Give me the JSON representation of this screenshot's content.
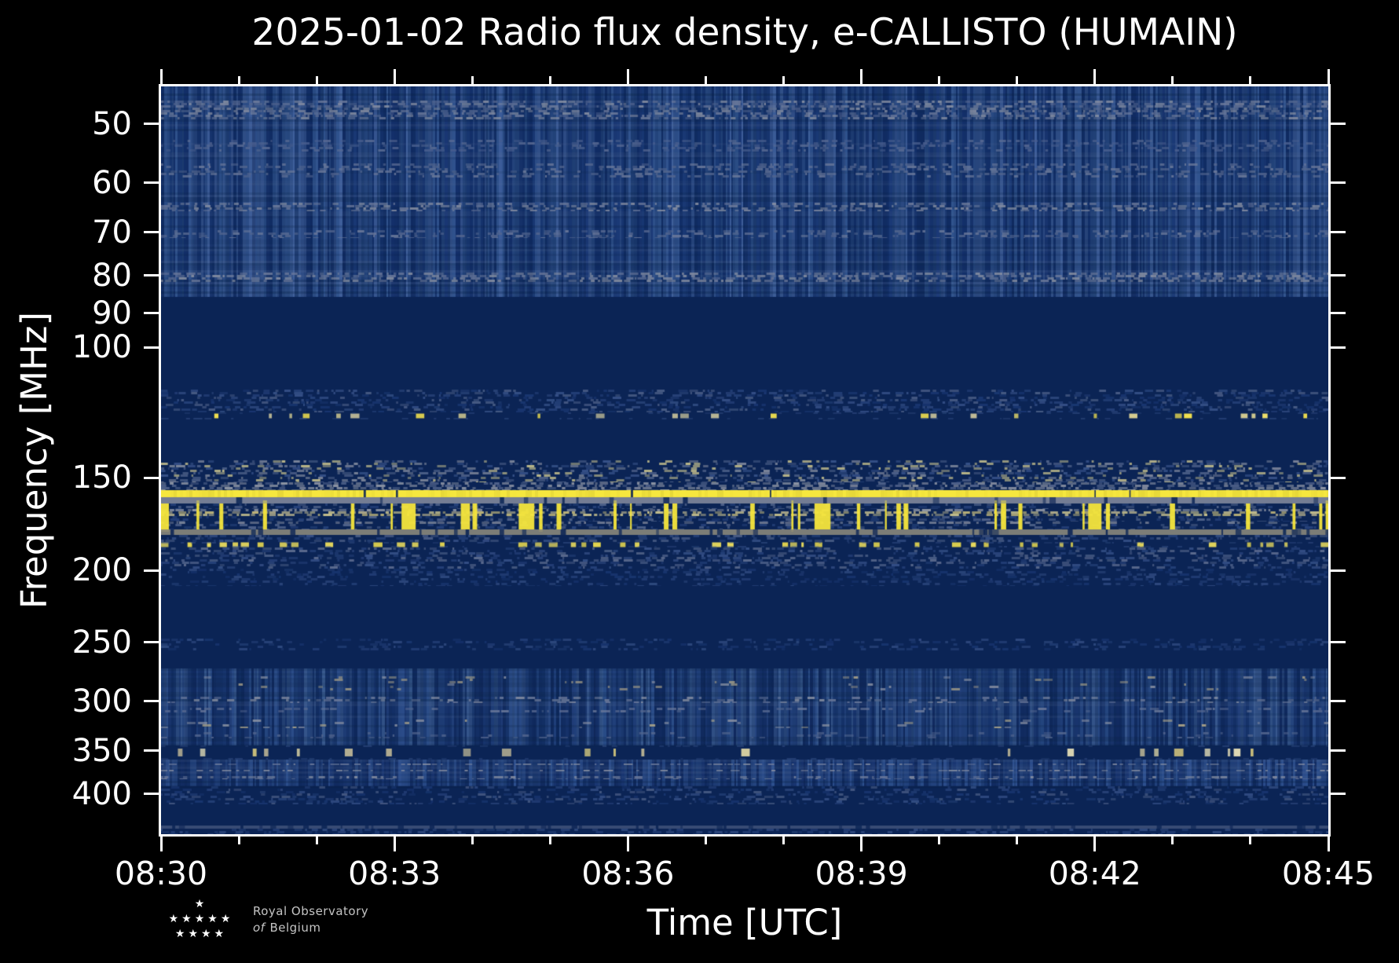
{
  "chart_data": {
    "type": "heatmap",
    "title": "2025-01-02 Radio flux density, e-CALLISTO (HUMAIN)",
    "xlabel": "Time [UTC]",
    "ylabel": "Frequency [MHz]",
    "x_range": [
      "08:30",
      "08:45"
    ],
    "x_ticks_major": [
      "08:30",
      "08:33",
      "08:36",
      "08:39",
      "08:42",
      "08:45"
    ],
    "x_minor_tick_every_minutes": 1,
    "x_major_tick_every_minutes": 3,
    "y_scale": "log",
    "y_range_mhz": [
      44.5,
      453.5
    ],
    "y_ticks": [
      50,
      60,
      70,
      80,
      90,
      100,
      150,
      200,
      250,
      300,
      350,
      400
    ],
    "grid": false,
    "legend": "none",
    "bands": [
      {
        "f0": 44.5,
        "f1": 85.5,
        "kind": "vstripe",
        "palette": [
          "#13306a",
          "#1b3a77",
          "#26477f",
          "#31548f",
          "#3f609c"
        ],
        "desc": "textured blue band with lighter horizontal interference rows",
        "light_rows": [
          {
            "f0": 46.5,
            "f1": 49.3,
            "colors": [
              "#6f7c9c",
              "#8c93a4",
              "#55678f"
            ],
            "density": 0.7
          },
          {
            "f0": 52.5,
            "f1": 54.5,
            "colors": [
              "#4a5f8e",
              "#5b6c94"
            ],
            "density": 0.45
          },
          {
            "f0": 56.5,
            "f1": 59.0,
            "colors": [
              "#55678f",
              "#6f7c9c"
            ],
            "density": 0.5
          },
          {
            "f0": 63.8,
            "f1": 65.6,
            "colors": [
              "#6f7c9c",
              "#8c93a4"
            ],
            "density": 0.65
          },
          {
            "f0": 69.5,
            "f1": 71.2,
            "colors": [
              "#55678f",
              "#6f7c9c"
            ],
            "density": 0.5
          },
          {
            "f0": 79.3,
            "f1": 81.6,
            "colors": [
              "#6f7c9c",
              "#8c93a4"
            ],
            "density": 0.65
          }
        ]
      },
      {
        "f0": 85.5,
        "f1": 114,
        "kind": "flat",
        "desc": "quiet dark region"
      },
      {
        "f0": 114,
        "f1": 122.4,
        "kind": "rows",
        "palette": [
          "#2a4680",
          "#3d5890",
          "#56688f",
          "#1d3b78"
        ],
        "density": 0.55,
        "alpha": 0.8
      },
      {
        "f0": 122.4,
        "f1": 125,
        "kind": "dashrow",
        "palette": [
          "#f2e14e",
          "#d8cf92",
          "#efe06a",
          "#c9c39a"
        ],
        "density": 0.16,
        "desc": "sparse bright dashes near 123 MHz"
      },
      {
        "f0": 125,
        "f1": 142,
        "kind": "flat"
      },
      {
        "f0": 142,
        "f1": 152,
        "kind": "rows",
        "palette": [
          "#3d5890",
          "#56688f",
          "#8c93a4",
          "#d8cf92"
        ],
        "density": 0.6,
        "alpha": 0.85
      },
      {
        "f0": 152,
        "f1": 155.8,
        "kind": "rows",
        "palette": [
          "#56688f",
          "#8c93a4",
          "#9aa0ac"
        ],
        "density": 0.8,
        "alpha": 0.9
      },
      {
        "f0": 155.8,
        "f1": 159.3,
        "kind": "solid",
        "color": "#f6e73e",
        "gap_density": 0.05,
        "desc": "continuous bright yellow line near 157 MHz"
      },
      {
        "f0": 159.3,
        "f1": 162.4,
        "kind": "grayband",
        "color": "#878da0",
        "alpha": 0.85,
        "gap_density": 0.12
      },
      {
        "f0": 162.4,
        "f1": 176,
        "kind": "bursts",
        "burst_color": "#f5e63c",
        "burst_coverage": 0.2,
        "desc": "intermittent vertical yellow bursts 162-176 MHz",
        "rows": [
          {
            "f0": 162.4,
            "f1": 165.1,
            "palette": [
              "#2a4680",
              "#56688f"
            ],
            "density": 0.5
          },
          {
            "f0": 165.1,
            "f1": 166.3,
            "palette": [
              "#8c93a4",
              "#9aa0ac"
            ],
            "density": 0.75
          },
          {
            "f0": 166.3,
            "f1": 169.0,
            "palette": [
              "#d8cf92",
              "#cfc27c",
              "#bdb68e"
            ],
            "density": 0.8
          },
          {
            "f0": 169.0,
            "f1": 171.9,
            "palette": [
              "#2a4680",
              "#56688f"
            ],
            "density": 0.5
          },
          {
            "f0": 171.9,
            "f1": 173.1,
            "palette": [
              "#8c93a4",
              "#7d8498"
            ],
            "density": 0.7
          },
          {
            "f0": 173.1,
            "f1": 176.0,
            "palette": [
              "#2a4680",
              "#56688f"
            ],
            "density": 0.5
          }
        ]
      },
      {
        "f0": 176,
        "f1": 179,
        "kind": "grayband",
        "color": "#98937f",
        "alpha": 0.8,
        "gap_density": 0.2
      },
      {
        "f0": 179,
        "f1": 183.1,
        "kind": "rows",
        "palette": [
          "#2a4680",
          "#3d5890",
          "#56688f"
        ],
        "density": 0.5,
        "alpha": 0.8
      },
      {
        "f0": 183.1,
        "f1": 186.3,
        "kind": "dashrow",
        "palette": [
          "#f2e14e",
          "#e8da5c"
        ],
        "density": 0.55,
        "desc": "dotted yellow line near 184 MHz"
      },
      {
        "f0": 186.3,
        "f1": 199,
        "kind": "rows",
        "palette": [
          "#2a4680",
          "#3d5890",
          "#56688f",
          "#6f7c9c"
        ],
        "density": 0.55,
        "alpha": 0.8
      },
      {
        "f0": 199,
        "f1": 210,
        "kind": "rows",
        "palette": [
          "#1d3b78",
          "#2a4680",
          "#3d5890"
        ],
        "density": 0.45,
        "alpha": 0.7
      },
      {
        "f0": 210,
        "f1": 247,
        "kind": "flat"
      },
      {
        "f0": 247,
        "f1": 256,
        "kind": "rows",
        "palette": [
          "#1d3b78",
          "#2a4680",
          "#3d5890"
        ],
        "density": 0.4,
        "alpha": 0.7
      },
      {
        "f0": 256,
        "f1": 271,
        "kind": "flat"
      },
      {
        "f0": 271,
        "f1": 344,
        "kind": "vstripe",
        "palette": [
          "#112b60",
          "#18356e",
          "#22417c",
          "#2c4e8a",
          "#38598f"
        ],
        "light_rows": [
          {
            "f0": 278,
            "f1": 290,
            "colors": [
              "#bdb18c",
              "#a59d86",
              "#8c93a4"
            ],
            "density": 0.07
          },
          {
            "f0": 296,
            "f1": 302,
            "colors": [
              "#6f7c9c",
              "#8c93a4"
            ],
            "density": 0.3
          },
          {
            "f0": 306,
            "f1": 311,
            "colors": [
              "#55678f",
              "#6f7c9c"
            ],
            "density": 0.3
          },
          {
            "f0": 318,
            "f1": 326,
            "colors": [
              "#8c93a4",
              "#bdb18c"
            ],
            "density": 0.1
          },
          {
            "f0": 330,
            "f1": 337,
            "colors": [
              "#55678f"
            ],
            "density": 0.25
          }
        ]
      },
      {
        "f0": 344,
        "f1": 360,
        "kind": "dashrow",
        "palette": [
          "#ded5a4",
          "#cfc27c",
          "#e9e2b8",
          "#b9b294"
        ],
        "density": 0.3,
        "desc": "speckled cream dashes near 350 MHz"
      },
      {
        "f0": 360,
        "f1": 391,
        "kind": "vstripe",
        "palette": [
          "#122c63",
          "#1a3773",
          "#24447f",
          "#2e5190"
        ],
        "light_rows": [
          {
            "f0": 364,
            "f1": 366,
            "colors": [
              "#8c93a4",
              "#6f7c9c"
            ],
            "density": 0.55
          },
          {
            "f0": 371,
            "f1": 373,
            "colors": [
              "#8c93a4"
            ],
            "density": 0.5
          },
          {
            "f0": 379,
            "f1": 382,
            "colors": [
              "#6f7c9c",
              "#8c93a4"
            ],
            "density": 0.5
          }
        ]
      },
      {
        "f0": 391,
        "f1": 413,
        "kind": "rows",
        "palette": [
          "#1d3b78",
          "#2a4680",
          "#3d5890",
          "#56688f"
        ],
        "density": 0.5,
        "alpha": 0.75
      },
      {
        "f0": 413,
        "f1": 442,
        "kind": "flat"
      },
      {
        "f0": 442,
        "f1": 446,
        "kind": "grayband",
        "color": "#6f7c9c",
        "alpha": 0.45,
        "gap_density": 0.3
      },
      {
        "f0": 446,
        "f1": 453.5,
        "kind": "rows",
        "palette": [
          "#2a4680",
          "#3d5890"
        ],
        "density": 0.5,
        "alpha": 0.7
      }
    ]
  },
  "branding": {
    "org_line1": "Royal Observatory",
    "org_line2_italic": "of",
    "org_line2": "Belgium",
    "star_rows": [
      1,
      5,
      4
    ]
  },
  "colors": {
    "background": "#000000",
    "axis": "#ffffff",
    "text": "#ffffff",
    "plot_base": "#0b2455",
    "bright_yellow": "#f6e73e",
    "cream": "#d8cf92",
    "gray_blue": "#6f7c9c",
    "medium_blue": "#1b3a77",
    "logo_text": "#c4c4c4"
  },
  "render_seed": 1234567
}
